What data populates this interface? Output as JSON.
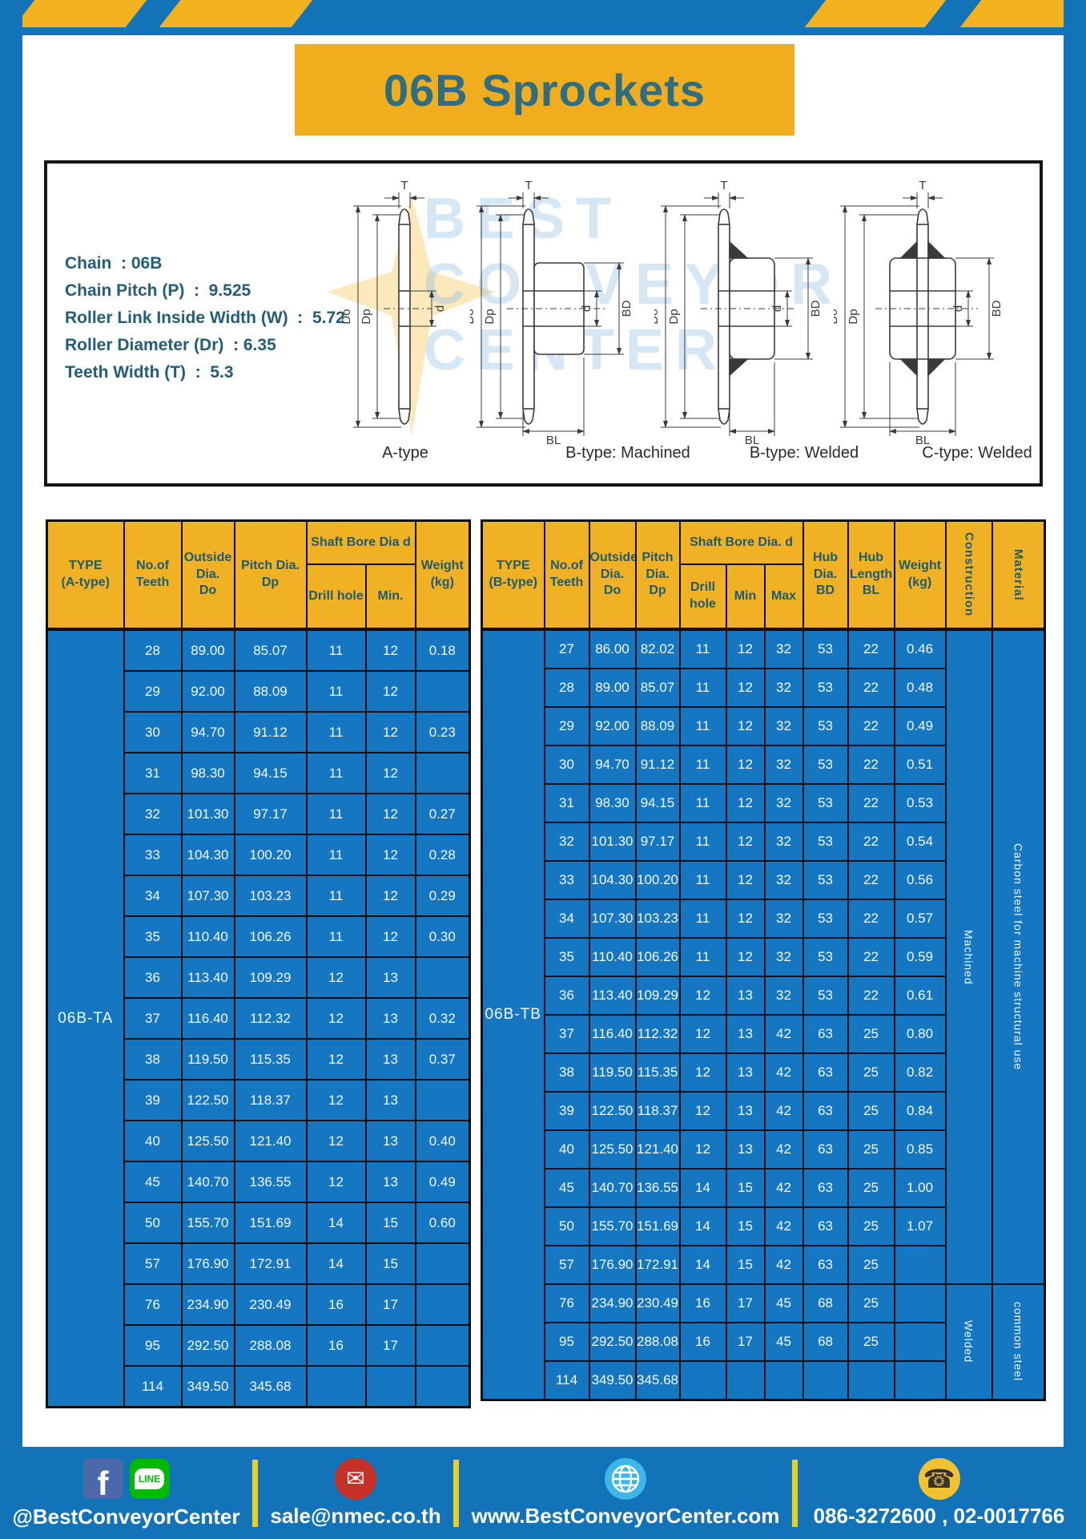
{
  "title": "06B Sprockets",
  "specs": [
    "Chain  : 06B",
    "Chain Pitch (P)  :  9.525",
    "Roller Link Inside Width (W)  :  5.72",
    "Roller Diameter (Dr)  : 6.35",
    "Teeth Width (T)  :  5.3"
  ],
  "watermark": {
    "lines": [
      "BEST",
      "CONVEYOR",
      "CENTER"
    ]
  },
  "drawings": {
    "captions": [
      "A-type",
      "B-type: Machined",
      "B-type: Welded",
      "C-type: Welded"
    ],
    "dims": {
      "t": "T",
      "do": "Do",
      "dp": "Dp",
      "d": "d",
      "bd": "BD",
      "bl": "BL"
    }
  },
  "table_a": {
    "type_label": "06B-TA",
    "headers": {
      "type": "TYPE\n(A-type)",
      "teeth": "No.of\nTeeth",
      "outside": "Outside\nDia.\nDo",
      "pitch": "Pitch Dia.\nDp",
      "shaft_group": "Shaft Bore Dia d",
      "drill": "Drill hole",
      "min": "Min.",
      "weight": "Weight\n(kg)"
    },
    "rows": [
      [
        "28",
        "89.00",
        "85.07",
        "11",
        "12",
        "0.18"
      ],
      [
        "29",
        "92.00",
        "88.09",
        "11",
        "12",
        ""
      ],
      [
        "30",
        "94.70",
        "91.12",
        "11",
        "12",
        "0.23"
      ],
      [
        "31",
        "98.30",
        "94.15",
        "11",
        "12",
        ""
      ],
      [
        "32",
        "101.30",
        "97.17",
        "11",
        "12",
        "0.27"
      ],
      [
        "33",
        "104.30",
        "100.20",
        "11",
        "12",
        "0.28"
      ],
      [
        "34",
        "107.30",
        "103.23",
        "11",
        "12",
        "0.29"
      ],
      [
        "35",
        "110.40",
        "106.26",
        "11",
        "12",
        "0.30"
      ],
      [
        "36",
        "113.40",
        "109.29",
        "12",
        "13",
        ""
      ],
      [
        "37",
        "116.40",
        "112.32",
        "12",
        "13",
        "0.32"
      ],
      [
        "38",
        "119.50",
        "115.35",
        "12",
        "13",
        "0.37"
      ],
      [
        "39",
        "122.50",
        "118.37",
        "12",
        "13",
        ""
      ],
      [
        "40",
        "125.50",
        "121.40",
        "12",
        "13",
        "0.40"
      ],
      [
        "45",
        "140.70",
        "136.55",
        "12",
        "13",
        "0.49"
      ],
      [
        "50",
        "155.70",
        "151.69",
        "14",
        "15",
        "0.60"
      ],
      [
        "57",
        "176.90",
        "172.91",
        "14",
        "15",
        ""
      ],
      [
        "76",
        "234.90",
        "230.49",
        "16",
        "17",
        ""
      ],
      [
        "95",
        "292.50",
        "288.08",
        "16",
        "17",
        ""
      ],
      [
        "114",
        "349.50",
        "345.68",
        "",
        "",
        ""
      ]
    ]
  },
  "table_b": {
    "type_label": "06B-TB",
    "headers": {
      "type": "TYPE\n(B-type)",
      "teeth": "No.of\nTeeth",
      "outside": "Outside\nDia.\nDo",
      "pitch": "Pitch\nDia.\nDp",
      "shaft_group": "Shaft Bore Dia. d",
      "drill": "Drill hole",
      "min": "Min",
      "max": "Max",
      "bd": "Hub\nDia.\nBD",
      "bl": "Hub\nLength\nBL",
      "weight": "Weight\n(kg)",
      "construction": "Construction",
      "material": "Material"
    },
    "rows": [
      [
        "27",
        "86.00",
        "82.02",
        "11",
        "12",
        "32",
        "53",
        "22",
        "0.46"
      ],
      [
        "28",
        "89.00",
        "85.07",
        "11",
        "12",
        "32",
        "53",
        "22",
        "0.48"
      ],
      [
        "29",
        "92.00",
        "88.09",
        "11",
        "12",
        "32",
        "53",
        "22",
        "0.49"
      ],
      [
        "30",
        "94.70",
        "91.12",
        "11",
        "12",
        "32",
        "53",
        "22",
        "0.51"
      ],
      [
        "31",
        "98.30",
        "94.15",
        "11",
        "12",
        "32",
        "53",
        "22",
        "0.53"
      ],
      [
        "32",
        "101.30",
        "97.17",
        "11",
        "12",
        "32",
        "53",
        "22",
        "0.54"
      ],
      [
        "33",
        "104.30",
        "100.20",
        "11",
        "12",
        "32",
        "53",
        "22",
        "0.56"
      ],
      [
        "34",
        "107.30",
        "103.23",
        "11",
        "12",
        "32",
        "53",
        "22",
        "0.57"
      ],
      [
        "35",
        "110.40",
        "106.26",
        "11",
        "12",
        "32",
        "53",
        "22",
        "0.59"
      ],
      [
        "36",
        "113.40",
        "109.29",
        "12",
        "13",
        "32",
        "53",
        "22",
        "0.61"
      ],
      [
        "37",
        "116.40",
        "112.32",
        "12",
        "13",
        "42",
        "63",
        "25",
        "0.80"
      ],
      [
        "38",
        "119.50",
        "115.35",
        "12",
        "13",
        "42",
        "63",
        "25",
        "0.82"
      ],
      [
        "39",
        "122.50",
        "118.37",
        "12",
        "13",
        "42",
        "63",
        "25",
        "0.84"
      ],
      [
        "40",
        "125.50",
        "121.40",
        "12",
        "13",
        "42",
        "63",
        "25",
        "0.85"
      ],
      [
        "45",
        "140.70",
        "136.55",
        "14",
        "15",
        "42",
        "63",
        "25",
        "1.00"
      ],
      [
        "50",
        "155.70",
        "151.69",
        "14",
        "15",
        "42",
        "63",
        "25",
        "1.07"
      ],
      [
        "57",
        "176.90",
        "172.91",
        "14",
        "15",
        "42",
        "63",
        "25",
        ""
      ],
      [
        "76",
        "234.90",
        "230.49",
        "16",
        "17",
        "45",
        "68",
        "25",
        ""
      ],
      [
        "95",
        "292.50",
        "288.08",
        "16",
        "17",
        "45",
        "68",
        "25",
        ""
      ],
      [
        "114",
        "349.50",
        "345.68",
        "",
        "",
        "",
        "",
        "",
        ""
      ]
    ],
    "construction": [
      {
        "label": "Machined",
        "rows": 17
      },
      {
        "label": "Welded",
        "rows": 3
      }
    ],
    "material": [
      {
        "label": "Carbon steel for machine structural use",
        "rows": 17
      },
      {
        "label": "common steel",
        "rows": 3
      }
    ]
  },
  "footer": {
    "facebook_glyph": "f",
    "line_badge": "LINE",
    "facebook_label": "@BestConveyorCenter",
    "email": "sale@nmec.co.th",
    "email_glyph": "✉",
    "website": "www.BestConveyorCenter.com",
    "phones": "086-3272600 , 02-0017766",
    "phone_glyph": "☎"
  },
  "colors": {
    "frame_blue": "#1273b8",
    "cell_blue": "#1577c1",
    "accent_yellow": "#f0b125",
    "teal_text": "#2d6e85"
  }
}
